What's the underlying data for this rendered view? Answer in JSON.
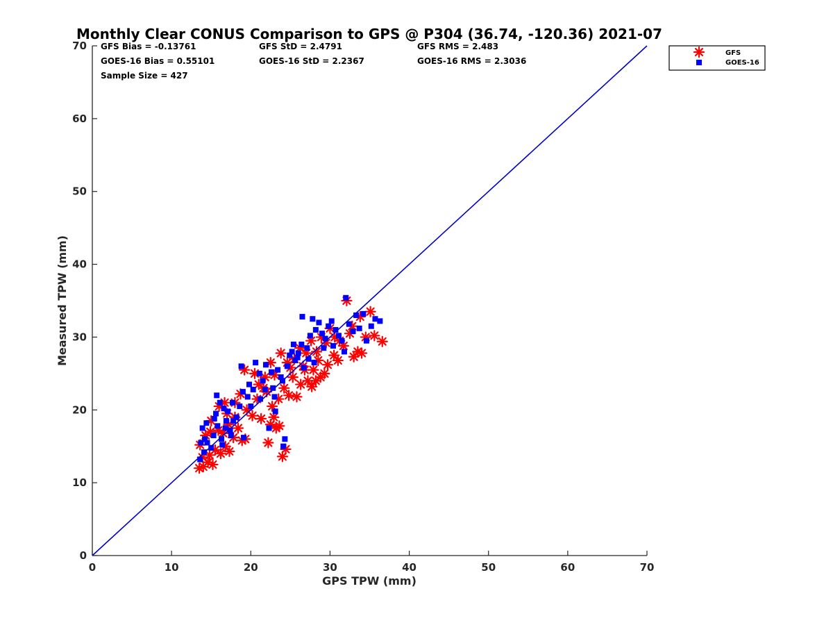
{
  "chart_data": {
    "type": "scatter",
    "title": "Monthly Clear CONUS Comparison to GPS @ P304 (36.74, -120.36) 2021-07",
    "xlabel": "GPS TPW (mm)",
    "ylabel": "Measured TPW (mm)",
    "xlim": [
      0,
      70
    ],
    "ylim": [
      0,
      70
    ],
    "xticks": [
      "0",
      "10",
      "20",
      "30",
      "40",
      "50",
      "60",
      "70"
    ],
    "yticks": [
      "0",
      "10",
      "20",
      "30",
      "40",
      "50",
      "60",
      "70"
    ],
    "legend_position": "top-right-outside",
    "stats": {
      "gfs_bias": "GFS Bias = -0.13761",
      "gfs_std": "GFS StD = 2.4791",
      "gfs_rms": "GFS RMS = 2.483",
      "goes_bias": "GOES-16 Bias = 0.55101",
      "goes_std": "GOES-16 StD = 2.2367",
      "goes_rms": "GOES-16 RMS = 2.3036",
      "sample_size": "Sample Size = 427"
    },
    "reference_line": {
      "x": [
        0,
        70
      ],
      "y": [
        0,
        70
      ],
      "color": "#0000cc"
    },
    "series": [
      {
        "name": "GFS",
        "marker": "asterisk",
        "color": "#ff0000",
        "points": [
          [
            13.5,
            12.0
          ],
          [
            14.0,
            12.2
          ],
          [
            14.6,
            12.8
          ],
          [
            15.2,
            12.5
          ],
          [
            13.6,
            15.2
          ],
          [
            14.3,
            16.5
          ],
          [
            14.8,
            13.8
          ],
          [
            15.5,
            14.5
          ],
          [
            16.2,
            14.0
          ],
          [
            16.8,
            15.0
          ],
          [
            17.3,
            14.3
          ],
          [
            15.9,
            17.2
          ],
          [
            16.5,
            16.8
          ],
          [
            17.2,
            18.0
          ],
          [
            17.8,
            16.2
          ],
          [
            18.4,
            17.5
          ],
          [
            18.9,
            15.8
          ],
          [
            19.3,
            16.0
          ],
          [
            15.0,
            18.5
          ],
          [
            16.0,
            20.5
          ],
          [
            17.0,
            19.5
          ],
          [
            18.0,
            21.0
          ],
          [
            18.7,
            22.2
          ],
          [
            19.5,
            20.0
          ],
          [
            20.2,
            19.2
          ],
          [
            20.8,
            21.5
          ],
          [
            21.3,
            18.8
          ],
          [
            21.8,
            24.5
          ],
          [
            22.2,
            15.5
          ],
          [
            22.5,
            18.0
          ],
          [
            22.9,
            19.0
          ],
          [
            23.2,
            17.5
          ],
          [
            23.6,
            17.8
          ],
          [
            24.0,
            13.6
          ],
          [
            24.4,
            14.6
          ],
          [
            20.5,
            25.0
          ],
          [
            21.0,
            23.5
          ],
          [
            22.0,
            22.5
          ],
          [
            22.7,
            20.5
          ],
          [
            23.5,
            21.5
          ],
          [
            24.2,
            23.0
          ],
          [
            24.8,
            22.0
          ],
          [
            25.3,
            24.5
          ],
          [
            25.8,
            21.8
          ],
          [
            26.3,
            23.5
          ],
          [
            26.8,
            25.5
          ],
          [
            27.2,
            24.0
          ],
          [
            27.7,
            23.2
          ],
          [
            28.2,
            24.0
          ],
          [
            28.8,
            24.5
          ],
          [
            29.3,
            25.0
          ],
          [
            23.8,
            27.8
          ],
          [
            24.6,
            26.5
          ],
          [
            25.5,
            27.0
          ],
          [
            26.2,
            28.5
          ],
          [
            27.0,
            27.8
          ],
          [
            27.6,
            29.5
          ],
          [
            28.3,
            28.0
          ],
          [
            28.9,
            30.0
          ],
          [
            29.5,
            29.2
          ],
          [
            30.0,
            31.2
          ],
          [
            30.6,
            30.0
          ],
          [
            31.2,
            29.5
          ],
          [
            31.7,
            28.8
          ],
          [
            32.1,
            35.0
          ],
          [
            32.5,
            30.5
          ],
          [
            33.0,
            27.3
          ],
          [
            33.5,
            28.0
          ],
          [
            34.0,
            27.8
          ],
          [
            34.5,
            30.0
          ],
          [
            35.1,
            33.5
          ],
          [
            35.6,
            30.2
          ],
          [
            36.6,
            29.4
          ],
          [
            29.7,
            26.2
          ],
          [
            31.0,
            26.8
          ],
          [
            30.5,
            27.5
          ],
          [
            32.8,
            31.5
          ],
          [
            33.8,
            32.8
          ],
          [
            22.5,
            26.5
          ],
          [
            23.0,
            24.8
          ],
          [
            19.2,
            25.5
          ],
          [
            18.0,
            19.0
          ],
          [
            16.7,
            21.0
          ],
          [
            14.9,
            17.0
          ],
          [
            13.9,
            13.5
          ],
          [
            25.0,
            25.8
          ],
          [
            26.6,
            26.0
          ],
          [
            27.9,
            25.5
          ],
          [
            28.5,
            26.8
          ],
          [
            21.6,
            23.0
          ]
        ]
      },
      {
        "name": "GOES-16",
        "marker": "square",
        "color": "#0000ff",
        "points": [
          [
            13.6,
            13.2
          ],
          [
            14.1,
            14.2
          ],
          [
            14.5,
            15.5
          ],
          [
            15.0,
            14.8
          ],
          [
            13.9,
            17.5
          ],
          [
            14.4,
            18.2
          ],
          [
            15.3,
            16.5
          ],
          [
            15.8,
            17.8
          ],
          [
            16.3,
            16.0
          ],
          [
            16.9,
            18.5
          ],
          [
            17.4,
            17.2
          ],
          [
            15.6,
            19.5
          ],
          [
            16.1,
            21.0
          ],
          [
            16.6,
            20.2
          ],
          [
            17.1,
            19.8
          ],
          [
            17.7,
            21.0
          ],
          [
            18.2,
            19.0
          ],
          [
            18.6,
            20.5
          ],
          [
            19.1,
            16.2
          ],
          [
            19.6,
            21.8
          ],
          [
            15.7,
            22.0
          ],
          [
            16.4,
            15.2
          ],
          [
            17.5,
            16.5
          ],
          [
            18.8,
            26.0
          ],
          [
            19.8,
            23.5
          ],
          [
            20.3,
            22.8
          ],
          [
            20.6,
            26.5
          ],
          [
            21.1,
            25.0
          ],
          [
            21.5,
            24.0
          ],
          [
            21.9,
            26.2
          ],
          [
            22.3,
            17.5
          ],
          [
            22.8,
            23.0
          ],
          [
            23.1,
            19.8
          ],
          [
            23.4,
            25.5
          ],
          [
            23.8,
            24.5
          ],
          [
            24.1,
            15.0
          ],
          [
            24.3,
            16.0
          ],
          [
            24.6,
            26.0
          ],
          [
            24.9,
            27.5
          ],
          [
            25.2,
            28.0
          ],
          [
            25.6,
            26.8
          ],
          [
            25.9,
            27.2
          ],
          [
            26.4,
            29.0
          ],
          [
            26.7,
            25.8
          ],
          [
            27.1,
            28.5
          ],
          [
            27.5,
            30.2
          ],
          [
            27.8,
            32.5
          ],
          [
            28.2,
            31.0
          ],
          [
            28.6,
            32.0
          ],
          [
            29.0,
            30.5
          ],
          [
            29.4,
            29.8
          ],
          [
            29.8,
            31.5
          ],
          [
            30.2,
            32.2
          ],
          [
            30.7,
            31.0
          ],
          [
            31.1,
            30.2
          ],
          [
            31.5,
            29.5
          ],
          [
            32.0,
            35.4
          ],
          [
            32.4,
            31.8
          ],
          [
            32.9,
            30.8
          ],
          [
            33.3,
            33.0
          ],
          [
            33.7,
            31.2
          ],
          [
            34.2,
            33.2
          ],
          [
            34.6,
            29.5
          ],
          [
            35.2,
            31.5
          ],
          [
            35.7,
            32.5
          ],
          [
            36.3,
            32.2
          ],
          [
            26.5,
            32.8
          ],
          [
            29.2,
            28.5
          ],
          [
            30.4,
            28.8
          ],
          [
            31.8,
            28.0
          ],
          [
            27.3,
            27.0
          ],
          [
            28.0,
            26.5
          ],
          [
            24.0,
            24.0
          ],
          [
            22.6,
            25.2
          ],
          [
            21.2,
            21.5
          ],
          [
            20.0,
            20.5
          ],
          [
            19.0,
            22.5
          ],
          [
            17.8,
            18.5
          ],
          [
            16.8,
            17.5
          ],
          [
            15.4,
            18.8
          ],
          [
            14.2,
            16.0
          ],
          [
            13.7,
            15.5
          ],
          [
            25.4,
            29.0
          ],
          [
            26.0,
            27.8
          ],
          [
            23.0,
            21.8
          ],
          [
            21.8,
            22.8
          ]
        ]
      }
    ]
  }
}
